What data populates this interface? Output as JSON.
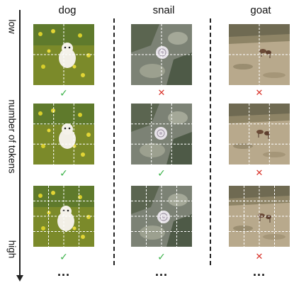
{
  "columns": [
    {
      "title": "dog"
    },
    {
      "title": "snail"
    },
    {
      "title": "goat"
    }
  ],
  "axis": {
    "low": "low",
    "middle": "number of tokens",
    "high": "high"
  },
  "rows": [
    {
      "grid": 2,
      "results": [
        "check",
        "cross",
        "cross"
      ]
    },
    {
      "grid": 3,
      "results": [
        "check",
        "check",
        "cross"
      ]
    },
    {
      "grid": 4,
      "results": [
        "check",
        "check",
        "cross"
      ]
    }
  ],
  "marks": {
    "check": "✓",
    "cross": "✕",
    "check_color": "#3cb34a",
    "cross_color": "#d9342b"
  },
  "ellipsis": "..."
}
